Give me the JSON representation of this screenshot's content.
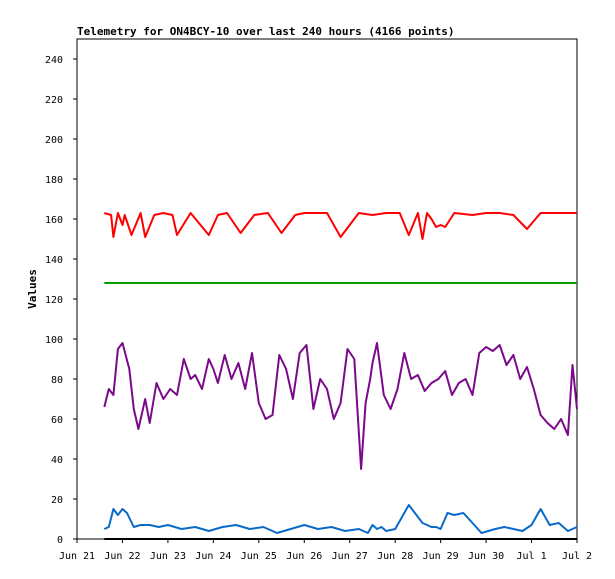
{
  "chart_data": {
    "type": "line",
    "title": "Telemetry for ON4BCY-10 over last 240 hours (4166 points)",
    "xlabel": "",
    "ylabel": "Values",
    "ylim": [
      0,
      250
    ],
    "yticks": [
      0,
      20,
      40,
      60,
      80,
      100,
      120,
      140,
      160,
      180,
      200,
      220,
      240
    ],
    "x_ticks": [
      "Jun 21",
      "Jun 22",
      "Jun 23",
      "Jun 24",
      "Jun 25",
      "Jun 26",
      "Jun 27",
      "Jun 28",
      "Jun 29",
      "Jun 30",
      "Jul 1",
      "Jul 2"
    ],
    "xlim": [
      0,
      11
    ],
    "grid": false,
    "colors": {
      "series_red": "#ff0000",
      "series_green": "#00a000",
      "series_purple": "#7a0a8a",
      "series_blue": "#0a6ac8",
      "series_black": "#000000"
    },
    "series": [
      {
        "color": "#ff0000",
        "x": [
          0.6,
          0.75,
          0.8,
          0.9,
          1.0,
          1.05,
          1.2,
          1.4,
          1.5,
          1.7,
          1.9,
          2.1,
          2.2,
          2.5,
          2.9,
          3.1,
          3.3,
          3.6,
          3.9,
          4.2,
          4.5,
          4.8,
          5.0,
          5.2,
          5.5,
          5.8,
          6.2,
          6.5,
          6.8,
          7.1,
          7.3,
          7.5,
          7.6,
          7.7,
          7.8,
          7.9,
          8.0,
          8.1,
          8.3,
          8.7,
          9.0,
          9.3,
          9.6,
          9.9,
          10.2,
          10.5,
          10.8,
          11.0
        ],
        "y": [
          163,
          162,
          151,
          163,
          157,
          162,
          152,
          163,
          151,
          162,
          163,
          162,
          152,
          163,
          152,
          162,
          163,
          153,
          162,
          163,
          153,
          162,
          163,
          163,
          163,
          151,
          163,
          162,
          163,
          163,
          152,
          163,
          150,
          163,
          160,
          156,
          157,
          156,
          163,
          162,
          163,
          163,
          162,
          155,
          163,
          163,
          163,
          163
        ]
      },
      {
        "color": "#00a000",
        "x": [
          0.6,
          11.0
        ],
        "y": [
          128,
          128
        ]
      },
      {
        "color": "#7a0a8a",
        "x": [
          0.6,
          0.7,
          0.8,
          0.9,
          1.0,
          1.15,
          1.25,
          1.35,
          1.5,
          1.6,
          1.75,
          1.9,
          2.05,
          2.2,
          2.35,
          2.5,
          2.6,
          2.75,
          2.9,
          3.0,
          3.1,
          3.25,
          3.4,
          3.55,
          3.7,
          3.85,
          4.0,
          4.15,
          4.3,
          4.45,
          4.6,
          4.75,
          4.9,
          5.05,
          5.2,
          5.35,
          5.5,
          5.65,
          5.8,
          5.95,
          6.1,
          6.25,
          6.35,
          6.45,
          6.5,
          6.6,
          6.75,
          6.9,
          7.05,
          7.2,
          7.35,
          7.5,
          7.65,
          7.8,
          7.95,
          8.1,
          8.25,
          8.4,
          8.55,
          8.7,
          8.85,
          9.0,
          9.15,
          9.3,
          9.45,
          9.6,
          9.75,
          9.9,
          10.05,
          10.2,
          10.35,
          10.5,
          10.65,
          10.8,
          10.9,
          11.0
        ],
        "y": [
          66,
          75,
          72,
          95,
          98,
          85,
          65,
          55,
          70,
          58,
          78,
          70,
          75,
          72,
          90,
          80,
          82,
          75,
          90,
          85,
          78,
          92,
          80,
          88,
          75,
          93,
          68,
          60,
          62,
          92,
          85,
          70,
          93,
          97,
          65,
          80,
          75,
          60,
          68,
          95,
          90,
          35,
          68,
          80,
          88,
          98,
          72,
          65,
          75,
          93,
          80,
          82,
          74,
          78,
          80,
          84,
          72,
          78,
          80,
          72,
          93,
          96,
          94,
          97,
          87,
          92,
          80,
          86,
          75,
          62,
          58,
          55,
          60,
          52,
          87,
          65
        ]
      },
      {
        "color": "#0a6ac8",
        "x": [
          0.6,
          0.7,
          0.8,
          0.9,
          1.0,
          1.1,
          1.25,
          1.4,
          1.6,
          1.8,
          2.0,
          2.3,
          2.6,
          2.9,
          3.2,
          3.5,
          3.8,
          4.1,
          4.4,
          4.7,
          5.0,
          5.3,
          5.6,
          5.9,
          6.2,
          6.4,
          6.5,
          6.6,
          6.7,
          6.8,
          7.0,
          7.3,
          7.6,
          7.7,
          7.8,
          7.9,
          8.0,
          8.15,
          8.3,
          8.5,
          8.7,
          8.9,
          9.2,
          9.4,
          9.6,
          9.8,
          10.0,
          10.2,
          10.4,
          10.6,
          10.8,
          11.0
        ],
        "y": [
          5,
          6,
          15,
          12,
          15,
          13,
          6,
          7,
          7,
          6,
          7,
          5,
          6,
          4,
          6,
          7,
          5,
          6,
          3,
          5,
          7,
          5,
          6,
          4,
          5,
          3,
          7,
          5,
          6,
          4,
          5,
          17,
          8,
          7,
          6,
          6,
          5,
          13,
          12,
          13,
          8,
          3,
          5,
          6,
          5,
          4,
          7,
          15,
          7,
          8,
          4,
          6
        ]
      },
      {
        "color": "#000000",
        "x": [
          0.6,
          11.0
        ],
        "y": [
          0,
          0
        ]
      }
    ]
  }
}
